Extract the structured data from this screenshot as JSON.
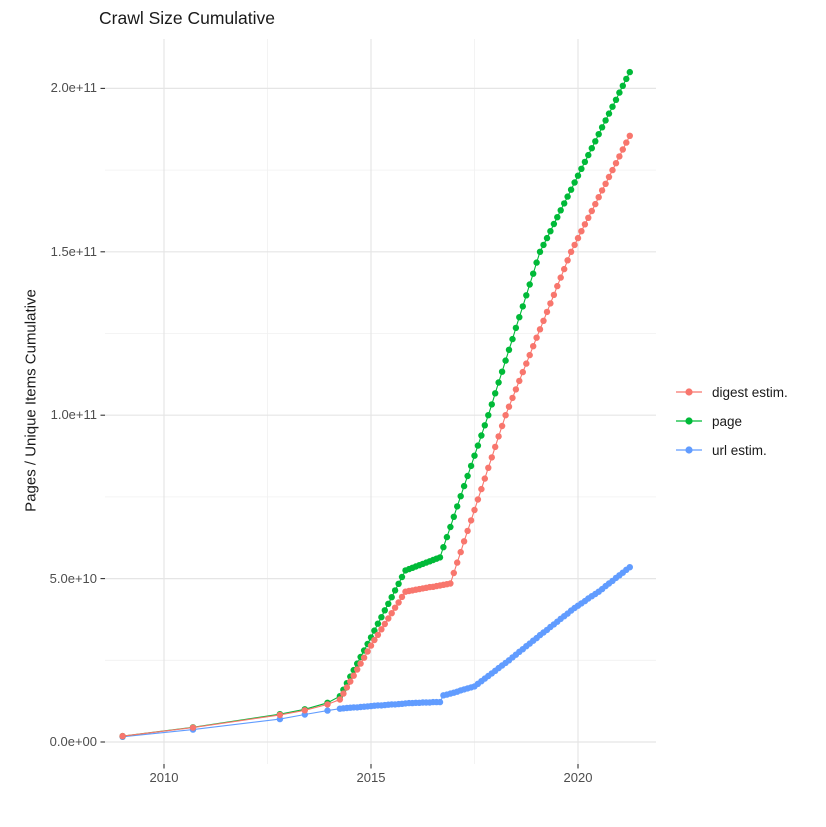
{
  "title": "Crawl Size Cumulative",
  "axes": {
    "x": {
      "label": "",
      "tick_labels": [
        "2010",
        "2015",
        "2020"
      ],
      "tick_values": [
        2010,
        2015,
        2020
      ],
      "minor_values": [
        2012.5,
        2017.5
      ],
      "range": [
        2008.5,
        2021.8
      ]
    },
    "y": {
      "label": "Pages / Unique Items Cumulative",
      "tick_labels": [
        "0.0e+00",
        "5.0e+10",
        "1.0e+11",
        "1.5e+11",
        "2.0e+11"
      ],
      "tick_values_billions": [
        0,
        50,
        100,
        150,
        200
      ],
      "minor_values_billions": [
        25,
        75,
        125,
        175
      ],
      "range_billions": [
        -10,
        215
      ]
    }
  },
  "legend": {
    "items": [
      {
        "label": "digest estim.",
        "color": "#F8766D"
      },
      {
        "label": "page",
        "color": "#00BA38"
      },
      {
        "label": "url estim.",
        "color": "#619CFF"
      }
    ]
  },
  "colors": {
    "grid_major": "#e5e5e5",
    "grid_minor": "#f0f0f0",
    "tick_mark": "#333333",
    "tick_text": "#4d4d4d",
    "text": "#1a1a1a"
  },
  "chart_data": {
    "type": "line",
    "title": "Crawl Size Cumulative",
    "xlabel": "",
    "ylabel": "Pages / Unique Items Cumulative",
    "value_unit": "billions of pages (1e9)",
    "xlim": [
      2008.5,
      2021.8
    ],
    "ylim_billions": [
      0,
      215
    ],
    "grid": true,
    "legend_position": "right",
    "series": [
      {
        "name": "digest estim.",
        "color": "#F8766D",
        "points": [
          [
            2009.0,
            1.8
          ],
          [
            2010.7,
            4.4
          ],
          [
            2012.8,
            8.3
          ],
          [
            2013.4,
            9.7
          ],
          [
            2013.95,
            11.5
          ],
          [
            2014.25,
            13
          ],
          [
            2014.333,
            14.8
          ],
          [
            2014.417,
            16.7
          ],
          [
            2014.5,
            18.5
          ],
          [
            2014.583,
            20.3
          ],
          [
            2014.667,
            22.2
          ],
          [
            2014.75,
            24
          ],
          [
            2014.833,
            25.8
          ],
          [
            2014.917,
            27.7
          ],
          [
            2015.0,
            29.5
          ],
          [
            2015.083,
            31.2
          ],
          [
            2015.167,
            32.8
          ],
          [
            2015.25,
            34.5
          ],
          [
            2015.333,
            36.1
          ],
          [
            2015.417,
            37.8
          ],
          [
            2015.5,
            39.4
          ],
          [
            2015.583,
            41.1
          ],
          [
            2015.667,
            42.7
          ],
          [
            2015.75,
            44.4
          ],
          [
            2015.833,
            46
          ],
          [
            2015.917,
            46.2
          ],
          [
            2016.0,
            46.4
          ],
          [
            2016.083,
            46.6
          ],
          [
            2016.167,
            46.8
          ],
          [
            2016.25,
            47
          ],
          [
            2016.333,
            47.2
          ],
          [
            2016.417,
            47.4
          ],
          [
            2016.5,
            47.5
          ],
          [
            2016.583,
            47.7
          ],
          [
            2016.667,
            47.9
          ],
          [
            2016.75,
            48.1
          ],
          [
            2016.833,
            48.3
          ],
          [
            2016.917,
            48.5
          ],
          [
            2017.0,
            51.7
          ],
          [
            2017.083,
            54.9
          ],
          [
            2017.167,
            58.1
          ],
          [
            2017.25,
            61.4
          ],
          [
            2017.333,
            64.6
          ],
          [
            2017.417,
            67.8
          ],
          [
            2017.5,
            71
          ],
          [
            2017.583,
            74.2
          ],
          [
            2017.667,
            77.4
          ],
          [
            2017.75,
            80.6
          ],
          [
            2017.833,
            83.9
          ],
          [
            2017.917,
            87.1
          ],
          [
            2018.0,
            90.3
          ],
          [
            2018.083,
            93.5
          ],
          [
            2018.167,
            96.7
          ],
          [
            2018.25,
            100
          ],
          [
            2018.333,
            102.6
          ],
          [
            2018.417,
            105.3
          ],
          [
            2018.5,
            107.9
          ],
          [
            2018.583,
            110.5
          ],
          [
            2018.667,
            113.2
          ],
          [
            2018.75,
            115.8
          ],
          [
            2018.833,
            118.4
          ],
          [
            2018.917,
            121.1
          ],
          [
            2019.0,
            123.7
          ],
          [
            2019.083,
            126.3
          ],
          [
            2019.167,
            128.9
          ],
          [
            2019.25,
            131.6
          ],
          [
            2019.333,
            134.2
          ],
          [
            2019.417,
            136.8
          ],
          [
            2019.5,
            139.5
          ],
          [
            2019.583,
            142.1
          ],
          [
            2019.667,
            144.7
          ],
          [
            2019.75,
            147.4
          ],
          [
            2019.833,
            150
          ],
          [
            2019.917,
            152.1
          ],
          [
            2020.0,
            154.2
          ],
          [
            2020.083,
            156.3
          ],
          [
            2020.167,
            158.4
          ],
          [
            2020.25,
            160.4
          ],
          [
            2020.333,
            162.5
          ],
          [
            2020.417,
            164.6
          ],
          [
            2020.5,
            166.7
          ],
          [
            2020.583,
            168.8
          ],
          [
            2020.667,
            170.8
          ],
          [
            2020.75,
            172.9
          ],
          [
            2020.833,
            175
          ],
          [
            2020.917,
            177.1
          ],
          [
            2021.0,
            179.2
          ],
          [
            2021.083,
            181.3
          ],
          [
            2021.167,
            183.4
          ],
          [
            2021.25,
            185.5
          ]
        ]
      },
      {
        "name": "page",
        "color": "#00BA38",
        "points": [
          [
            2009.0,
            1.8
          ],
          [
            2010.7,
            4.5
          ],
          [
            2012.8,
            8.5
          ],
          [
            2013.4,
            10
          ],
          [
            2013.95,
            12
          ],
          [
            2014.25,
            14
          ],
          [
            2014.333,
            16
          ],
          [
            2014.417,
            18
          ],
          [
            2014.5,
            20
          ],
          [
            2014.583,
            22
          ],
          [
            2014.667,
            24
          ],
          [
            2014.75,
            26
          ],
          [
            2014.833,
            28
          ],
          [
            2014.917,
            30
          ],
          [
            2015.0,
            32
          ],
          [
            2015.083,
            34.1
          ],
          [
            2015.167,
            36.2
          ],
          [
            2015.25,
            38.2
          ],
          [
            2015.333,
            40.3
          ],
          [
            2015.417,
            42.3
          ],
          [
            2015.5,
            44.3
          ],
          [
            2015.583,
            46.4
          ],
          [
            2015.667,
            48.4
          ],
          [
            2015.75,
            50.5
          ],
          [
            2015.833,
            52.5
          ],
          [
            2015.917,
            52.9
          ],
          [
            2016.0,
            53.3
          ],
          [
            2016.083,
            53.7
          ],
          [
            2016.167,
            54.1
          ],
          [
            2016.25,
            54.5
          ],
          [
            2016.333,
            54.9
          ],
          [
            2016.417,
            55.3
          ],
          [
            2016.5,
            55.7
          ],
          [
            2016.583,
            56.1
          ],
          [
            2016.667,
            56.5
          ],
          [
            2016.75,
            59.6
          ],
          [
            2016.833,
            62.7
          ],
          [
            2016.917,
            65.8
          ],
          [
            2017.0,
            68.9
          ],
          [
            2017.083,
            72.1
          ],
          [
            2017.167,
            75.2
          ],
          [
            2017.25,
            78.3
          ],
          [
            2017.333,
            81.4
          ],
          [
            2017.417,
            84.5
          ],
          [
            2017.5,
            87.6
          ],
          [
            2017.583,
            90.7
          ],
          [
            2017.667,
            93.8
          ],
          [
            2017.75,
            96.9
          ],
          [
            2017.833,
            100
          ],
          [
            2017.917,
            103.3
          ],
          [
            2018.0,
            106.7
          ],
          [
            2018.083,
            110
          ],
          [
            2018.167,
            113.3
          ],
          [
            2018.25,
            116.7
          ],
          [
            2018.333,
            120
          ],
          [
            2018.417,
            123.3
          ],
          [
            2018.5,
            126.7
          ],
          [
            2018.583,
            130
          ],
          [
            2018.667,
            133.3
          ],
          [
            2018.75,
            136.7
          ],
          [
            2018.833,
            140
          ],
          [
            2018.917,
            143.3
          ],
          [
            2019.0,
            146.7
          ],
          [
            2019.083,
            150
          ],
          [
            2019.167,
            152.1
          ],
          [
            2019.25,
            154.2
          ],
          [
            2019.333,
            156.3
          ],
          [
            2019.417,
            158.5
          ],
          [
            2019.5,
            160.6
          ],
          [
            2019.583,
            162.7
          ],
          [
            2019.667,
            164.8
          ],
          [
            2019.75,
            166.9
          ],
          [
            2019.833,
            169
          ],
          [
            2019.917,
            171.2
          ],
          [
            2020.0,
            173.3
          ],
          [
            2020.083,
            175.4
          ],
          [
            2020.167,
            177.5
          ],
          [
            2020.25,
            179.6
          ],
          [
            2020.333,
            181.7
          ],
          [
            2020.417,
            183.8
          ],
          [
            2020.5,
            186
          ],
          [
            2020.583,
            188.1
          ],
          [
            2020.667,
            190.2
          ],
          [
            2020.75,
            192.3
          ],
          [
            2020.833,
            194.4
          ],
          [
            2020.917,
            196.5
          ],
          [
            2021.0,
            198.7
          ],
          [
            2021.083,
            200.8
          ],
          [
            2021.167,
            202.9
          ],
          [
            2021.25,
            205
          ]
        ]
      },
      {
        "name": "url estim.",
        "color": "#619CFF",
        "points": [
          [
            2009.0,
            1.6
          ],
          [
            2010.7,
            3.8
          ],
          [
            2012.8,
            7
          ],
          [
            2013.4,
            8.4
          ],
          [
            2013.95,
            9.6
          ],
          [
            2014.25,
            10.2
          ],
          [
            2014.333,
            10.3
          ],
          [
            2014.417,
            10.4
          ],
          [
            2014.5,
            10.5
          ],
          [
            2014.583,
            10.6
          ],
          [
            2014.667,
            10.6
          ],
          [
            2014.75,
            10.7
          ],
          [
            2014.833,
            10.8
          ],
          [
            2014.917,
            10.9
          ],
          [
            2015.0,
            11
          ],
          [
            2015.083,
            11.1
          ],
          [
            2015.167,
            11.2
          ],
          [
            2015.25,
            11.2
          ],
          [
            2015.333,
            11.3
          ],
          [
            2015.417,
            11.4
          ],
          [
            2015.5,
            11.5
          ],
          [
            2015.583,
            11.5
          ],
          [
            2015.667,
            11.6
          ],
          [
            2015.75,
            11.7
          ],
          [
            2015.833,
            11.8
          ],
          [
            2015.917,
            11.9
          ],
          [
            2016.0,
            11.9
          ],
          [
            2016.083,
            12
          ],
          [
            2016.167,
            12
          ],
          [
            2016.25,
            12.1
          ],
          [
            2016.333,
            12.1
          ],
          [
            2016.417,
            12.1
          ],
          [
            2016.5,
            12.2
          ],
          [
            2016.583,
            12.2
          ],
          [
            2016.667,
            12.2
          ],
          [
            2016.75,
            14.3
          ],
          [
            2016.833,
            14.5
          ],
          [
            2016.917,
            14.8
          ],
          [
            2017.0,
            15.1
          ],
          [
            2017.083,
            15.4
          ],
          [
            2017.167,
            15.8
          ],
          [
            2017.25,
            16.1
          ],
          [
            2017.333,
            16.4
          ],
          [
            2017.417,
            16.7
          ],
          [
            2017.5,
            17
          ],
          [
            2017.583,
            17.8
          ],
          [
            2017.667,
            18.6
          ],
          [
            2017.75,
            19.4
          ],
          [
            2017.833,
            20.2
          ],
          [
            2017.917,
            21
          ],
          [
            2018.0,
            21.8
          ],
          [
            2018.083,
            22.6
          ],
          [
            2018.167,
            23.4
          ],
          [
            2018.25,
            24.2
          ],
          [
            2018.333,
            25
          ],
          [
            2018.417,
            25.9
          ],
          [
            2018.5,
            26.7
          ],
          [
            2018.583,
            27.6
          ],
          [
            2018.667,
            28.4
          ],
          [
            2018.75,
            29.3
          ],
          [
            2018.833,
            30.1
          ],
          [
            2018.917,
            31
          ],
          [
            2019.0,
            31.8
          ],
          [
            2019.083,
            32.7
          ],
          [
            2019.167,
            33.5
          ],
          [
            2019.25,
            34.3
          ],
          [
            2019.333,
            35.2
          ],
          [
            2019.417,
            36
          ],
          [
            2019.5,
            36.8
          ],
          [
            2019.583,
            37.7
          ],
          [
            2019.667,
            38.5
          ],
          [
            2019.75,
            39.3
          ],
          [
            2019.833,
            40.2
          ],
          [
            2019.917,
            41
          ],
          [
            2020.0,
            41.7
          ],
          [
            2020.083,
            42.4
          ],
          [
            2020.167,
            43.1
          ],
          [
            2020.25,
            43.9
          ],
          [
            2020.333,
            44.6
          ],
          [
            2020.417,
            45.3
          ],
          [
            2020.5,
            46
          ],
          [
            2020.583,
            46.8
          ],
          [
            2020.667,
            47.7
          ],
          [
            2020.75,
            48.5
          ],
          [
            2020.833,
            49.3
          ],
          [
            2020.917,
            50.2
          ],
          [
            2021.0,
            51
          ],
          [
            2021.083,
            51.8
          ],
          [
            2021.167,
            52.7
          ],
          [
            2021.25,
            53.5
          ]
        ]
      }
    ]
  }
}
